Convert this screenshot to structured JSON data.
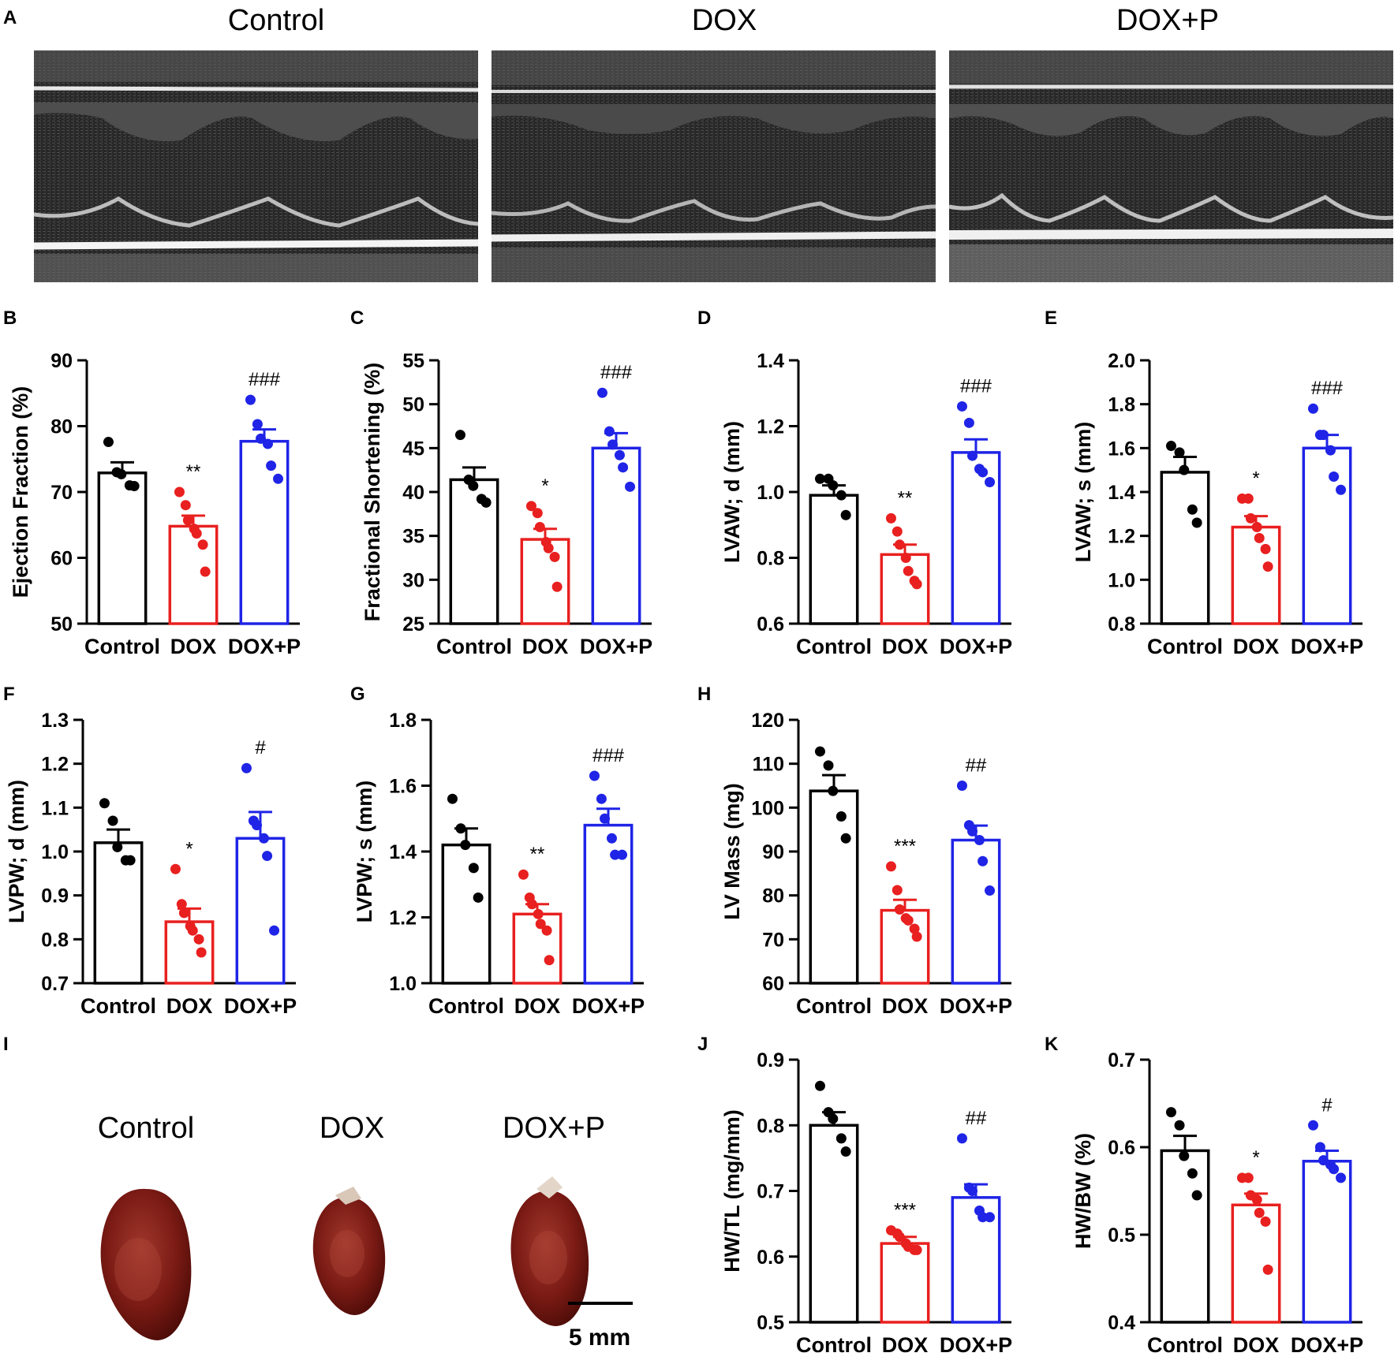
{
  "groups": [
    "Control",
    "DOX",
    "DOX+P"
  ],
  "colors": {
    "Control": "#000000",
    "DOX": "#e8201f",
    "DOX+P": "#1f24e6"
  },
  "panel_a": {
    "label": "A",
    "titles": [
      "Control",
      "DOX",
      "DOX+P"
    ]
  },
  "panel_i": {
    "label": "I",
    "titles": [
      "Control",
      "DOX",
      "DOX+P"
    ],
    "scale_label": "5 mm",
    "heart_color": "#7a1a14"
  },
  "chart_data": [
    {
      "id": "B",
      "type": "bar",
      "ylabel": "Ejection Fraction (%)",
      "ylim": [
        50,
        90
      ],
      "ticks": [
        50,
        60,
        70,
        80,
        90
      ],
      "decimals": 0,
      "categories": [
        "Control",
        "DOX",
        "DOX+P"
      ],
      "means": [
        72.9,
        64.8,
        77.7
      ],
      "sem": [
        1.6,
        1.6,
        1.8
      ],
      "points": [
        [
          77.6,
          73.0,
          72.7,
          71.0,
          70.9
        ],
        [
          70.0,
          68.0,
          65.7,
          64.4,
          63.7,
          62.0,
          57.9
        ],
        [
          84.0,
          80.3,
          78.1,
          77.3,
          74.0,
          72.0
        ]
      ],
      "annotations": [
        "",
        "**",
        "###"
      ]
    },
    {
      "id": "C",
      "type": "bar",
      "ylabel": "Fractional Shortening (%)",
      "ylim": [
        25,
        55
      ],
      "ticks": [
        25,
        30,
        35,
        40,
        45,
        50,
        55
      ],
      "decimals": 0,
      "categories": [
        "Control",
        "DOX",
        "DOX+P"
      ],
      "means": [
        41.4,
        34.6,
        45.0
      ],
      "sem": [
        1.4,
        1.2,
        1.7
      ],
      "points": [
        [
          46.5,
          41.4,
          40.7,
          39.2,
          38.8
        ],
        [
          38.4,
          37.6,
          36.0,
          34.3,
          33.6,
          32.6,
          29.2
        ],
        [
          51.3,
          46.9,
          45.4,
          44.2,
          42.8,
          40.6
        ]
      ],
      "annotations": [
        "",
        "*",
        "###"
      ]
    },
    {
      "id": "D",
      "type": "bar",
      "ylabel": "LVAW; d (mm)",
      "ylim": [
        0.6,
        1.4
      ],
      "ticks": [
        0.6,
        0.8,
        1.0,
        1.2,
        1.4
      ],
      "decimals": 1,
      "categories": [
        "Control",
        "DOX",
        "DOX+P"
      ],
      "means": [
        0.99,
        0.81,
        1.12
      ],
      "sem": [
        0.03,
        0.03,
        0.04
      ],
      "points": [
        [
          1.04,
          1.04,
          1.02,
          0.99,
          0.93
        ],
        [
          0.92,
          0.88,
          0.84,
          0.8,
          0.76,
          0.73,
          0.72
        ],
        [
          1.26,
          1.21,
          1.11,
          1.07,
          1.06,
          1.03
        ]
      ],
      "annotations": [
        "",
        "**",
        "###"
      ]
    },
    {
      "id": "E",
      "type": "bar",
      "ylabel": "LVAW; s (mm)",
      "ylim": [
        0.8,
        2.0
      ],
      "ticks": [
        0.8,
        1.0,
        1.2,
        1.4,
        1.6,
        1.8,
        2.0
      ],
      "decimals": 1,
      "categories": [
        "Control",
        "DOX",
        "DOX+P"
      ],
      "means": [
        1.49,
        1.24,
        1.6
      ],
      "sem": [
        0.07,
        0.05,
        0.06
      ],
      "points": [
        [
          1.61,
          1.58,
          1.5,
          1.32,
          1.26
        ],
        [
          1.37,
          1.37,
          1.28,
          1.24,
          1.19,
          1.14,
          1.06
        ],
        [
          1.78,
          1.66,
          1.66,
          1.59,
          1.47,
          1.41
        ]
      ],
      "annotations": [
        "",
        "*",
        "###"
      ]
    },
    {
      "id": "F",
      "type": "bar",
      "ylabel": "LVPW; d (mm)",
      "ylim": [
        0.7,
        1.3
      ],
      "ticks": [
        0.7,
        0.8,
        0.9,
        1.0,
        1.1,
        1.2,
        1.3
      ],
      "decimals": 1,
      "categories": [
        "Control",
        "DOX",
        "DOX+P"
      ],
      "means": [
        1.02,
        0.84,
        1.03
      ],
      "sem": [
        0.03,
        0.03,
        0.06
      ],
      "points": [
        [
          1.11,
          1.07,
          1.01,
          0.98,
          0.98
        ],
        [
          0.96,
          0.88,
          0.86,
          0.83,
          0.82,
          0.8,
          0.77
        ],
        [
          1.19,
          1.07,
          1.06,
          1.03,
          0.99,
          0.82
        ]
      ],
      "annotations": [
        "",
        "*",
        "#"
      ]
    },
    {
      "id": "G",
      "type": "bar",
      "ylabel": "LVPW; s (mm)",
      "ylim": [
        1.0,
        1.8
      ],
      "ticks": [
        1.0,
        1.2,
        1.4,
        1.6,
        1.8
      ],
      "decimals": 1,
      "categories": [
        "Control",
        "DOX",
        "DOX+P"
      ],
      "means": [
        1.42,
        1.21,
        1.48
      ],
      "sem": [
        0.05,
        0.03,
        0.05
      ],
      "points": [
        [
          1.56,
          1.47,
          1.42,
          1.35,
          1.26
        ],
        [
          1.33,
          1.26,
          1.24,
          1.21,
          1.18,
          1.16,
          1.07
        ],
        [
          1.63,
          1.56,
          1.5,
          1.44,
          1.39,
          1.39
        ]
      ],
      "annotations": [
        "",
        "**",
        "###"
      ]
    },
    {
      "id": "H",
      "type": "bar",
      "ylabel": "LV Mass (mg)",
      "ylim": [
        60,
        120
      ],
      "ticks": [
        60,
        70,
        80,
        90,
        100,
        110,
        120
      ],
      "decimals": 0,
      "categories": [
        "Control",
        "DOX",
        "DOX+P"
      ],
      "means": [
        103.8,
        76.6,
        92.6
      ],
      "sem": [
        3.6,
        2.4,
        3.3
      ],
      "points": [
        [
          112.8,
          109.6,
          103.8,
          98.0,
          93.0
        ],
        [
          86.6,
          81.2,
          76.8,
          74.8,
          74.3,
          72.4,
          70.6
        ],
        [
          105.0,
          96.0,
          94.6,
          92.6,
          87.8,
          81.1
        ]
      ],
      "annotations": [
        "",
        "***",
        "##"
      ]
    },
    {
      "id": "J",
      "type": "bar",
      "ylabel": "HW/TL (mg/mm)",
      "ylim": [
        0.5,
        0.9
      ],
      "ticks": [
        0.5,
        0.6,
        0.7,
        0.8,
        0.9
      ],
      "decimals": 1,
      "categories": [
        "Control",
        "DOX",
        "DOX+P"
      ],
      "means": [
        0.8,
        0.62,
        0.69
      ],
      "sem": [
        0.02,
        0.01,
        0.02
      ],
      "points": [
        [
          0.86,
          0.82,
          0.81,
          0.78,
          0.76
        ],
        [
          0.64,
          0.635,
          0.63,
          0.62,
          0.615,
          0.61,
          0.61
        ],
        [
          0.78,
          0.705,
          0.7,
          0.67,
          0.66,
          0.66
        ]
      ],
      "annotations": [
        "",
        "***",
        "##"
      ]
    },
    {
      "id": "K",
      "type": "bar",
      "ylabel": "HW/BW (%)",
      "ylim": [
        0.4,
        0.7
      ],
      "ticks": [
        0.4,
        0.5,
        0.6,
        0.7
      ],
      "decimals": 1,
      "categories": [
        "Control",
        "DOX",
        "DOX+P"
      ],
      "means": [
        0.596,
        0.534,
        0.584
      ],
      "sem": [
        0.017,
        0.013,
        0.012
      ],
      "points": [
        [
          0.64,
          0.625,
          0.59,
          0.57,
          0.545
        ],
        [
          0.565,
          0.565,
          0.545,
          0.54,
          0.525,
          0.515,
          0.46
        ],
        [
          0.625,
          0.6,
          0.585,
          0.58,
          0.575,
          0.565
        ]
      ],
      "annotations": [
        "",
        "*",
        "#"
      ]
    }
  ]
}
